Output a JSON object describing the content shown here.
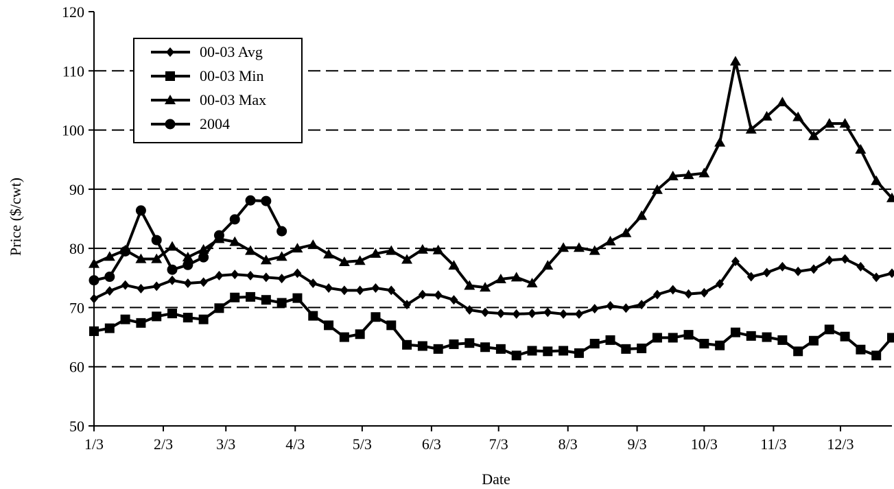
{
  "chart_data": {
    "type": "line",
    "title": "",
    "xlabel": "Date",
    "ylabel": "Price ($/cwt)",
    "ylim": [
      50,
      120
    ],
    "yticks": [
      50,
      60,
      70,
      80,
      90,
      100,
      110,
      120
    ],
    "xlim": [
      0,
      51
    ],
    "xticks": [
      {
        "label": "1/3",
        "x": 0
      },
      {
        "label": "2/3",
        "x": 4.43
      },
      {
        "label": "3/3",
        "x": 8.43
      },
      {
        "label": "4/3",
        "x": 12.86
      },
      {
        "label": "5/3",
        "x": 17.14
      },
      {
        "label": "6/3",
        "x": 21.57
      },
      {
        "label": "7/3",
        "x": 25.86
      },
      {
        "label": "8/3",
        "x": 30.29
      },
      {
        "label": "9/3",
        "x": 34.71
      },
      {
        "label": "10/3",
        "x": 39
      },
      {
        "label": "11/3",
        "x": 43.43
      },
      {
        "label": "12/3",
        "x": 47.71
      }
    ],
    "grid": "horizontal-dashed",
    "legend_position": "top-left",
    "series": [
      {
        "name": "00-03 Avg",
        "marker": "diamond",
        "x": [
          0,
          1,
          2,
          3,
          4,
          5,
          6,
          7,
          8,
          9,
          10,
          11,
          12,
          13,
          14,
          15,
          16,
          17,
          18,
          19,
          20,
          21,
          22,
          23,
          24,
          25,
          26,
          27,
          28,
          29,
          30,
          31,
          32,
          33,
          34,
          35,
          36,
          37,
          38,
          39,
          40,
          41,
          42,
          43,
          44,
          45,
          46,
          47,
          48,
          49,
          50,
          51
        ],
        "values": [
          71.5,
          72.8,
          73.8,
          73.2,
          73.6,
          74.6,
          74.1,
          74.3,
          75.4,
          75.6,
          75.4,
          75.1,
          74.9,
          75.8,
          74.1,
          73.3,
          72.9,
          72.9,
          73.3,
          72.9,
          70.5,
          72.2,
          72.1,
          71.3,
          69.6,
          69.2,
          69.0,
          68.9,
          69.0,
          69.2,
          68.9,
          68.9,
          69.8,
          70.3,
          69.9,
          70.5,
          72.2,
          73.0,
          72.3,
          72.5,
          74.0,
          77.8,
          75.2,
          75.9,
          76.9,
          76.1,
          76.5,
          78.0,
          78.2,
          76.9,
          75.1,
          75.8
        ]
      },
      {
        "name": "00-03 Min",
        "marker": "square",
        "x": [
          0,
          1,
          2,
          3,
          4,
          5,
          6,
          7,
          8,
          9,
          10,
          11,
          12,
          13,
          14,
          15,
          16,
          17,
          18,
          19,
          20,
          21,
          22,
          23,
          24,
          25,
          26,
          27,
          28,
          29,
          30,
          31,
          32,
          33,
          34,
          35,
          36,
          37,
          38,
          39,
          40,
          41,
          42,
          43,
          44,
          45,
          46,
          47,
          48,
          49,
          50,
          51
        ],
        "values": [
          66.0,
          66.5,
          68.0,
          67.4,
          68.5,
          69.0,
          68.3,
          68.0,
          69.9,
          71.7,
          71.8,
          71.3,
          70.8,
          71.6,
          68.6,
          67.0,
          65.0,
          65.5,
          68.4,
          67.0,
          63.7,
          63.5,
          63.0,
          63.8,
          64.0,
          63.3,
          63.0,
          61.9,
          62.7,
          62.6,
          62.7,
          62.3,
          63.9,
          64.5,
          63.0,
          63.1,
          64.9,
          64.9,
          65.4,
          63.9,
          63.6,
          65.8,
          65.2,
          65.0,
          64.5,
          62.6,
          64.4,
          66.3,
          65.1,
          62.9,
          61.9,
          64.9
        ]
      },
      {
        "name": "00-03 Max",
        "marker": "triangle",
        "x": [
          0,
          1,
          2,
          3,
          4,
          5,
          6,
          7,
          8,
          9,
          10,
          11,
          12,
          13,
          14,
          15,
          16,
          17,
          18,
          19,
          20,
          21,
          22,
          23,
          24,
          25,
          26,
          27,
          28,
          29,
          30,
          31,
          32,
          33,
          34,
          35,
          36,
          37,
          38,
          39,
          40,
          41,
          42,
          43,
          44,
          45,
          46,
          47,
          48,
          49,
          50,
          51
        ],
        "values": [
          77.4,
          78.6,
          79.7,
          78.2,
          78.2,
          80.3,
          78.5,
          79.8,
          81.6,
          81.1,
          79.6,
          78.0,
          78.6,
          80.0,
          80.6,
          79.0,
          77.7,
          77.9,
          79.1,
          79.6,
          78.1,
          79.8,
          79.7,
          77.1,
          73.7,
          73.4,
          74.8,
          75.1,
          74.1,
          77.1,
          80.1,
          80.1,
          79.6,
          81.2,
          82.6,
          85.5,
          89.9,
          92.2,
          92.4,
          92.7,
          97.9,
          111.6,
          100.1,
          102.3,
          104.7,
          102.2,
          99.0,
          101.1,
          101.1,
          96.7,
          91.4,
          88.5
        ]
      },
      {
        "name": "2004",
        "marker": "circle",
        "x": [
          0,
          1,
          2,
          3,
          4,
          5,
          6,
          7,
          8,
          9,
          10,
          11,
          12
        ],
        "values": [
          74.6,
          75.2,
          79.5,
          86.4,
          81.4,
          76.4,
          77.2,
          78.5,
          82.2,
          84.9,
          88.1,
          88.0,
          82.9
        ]
      }
    ]
  }
}
